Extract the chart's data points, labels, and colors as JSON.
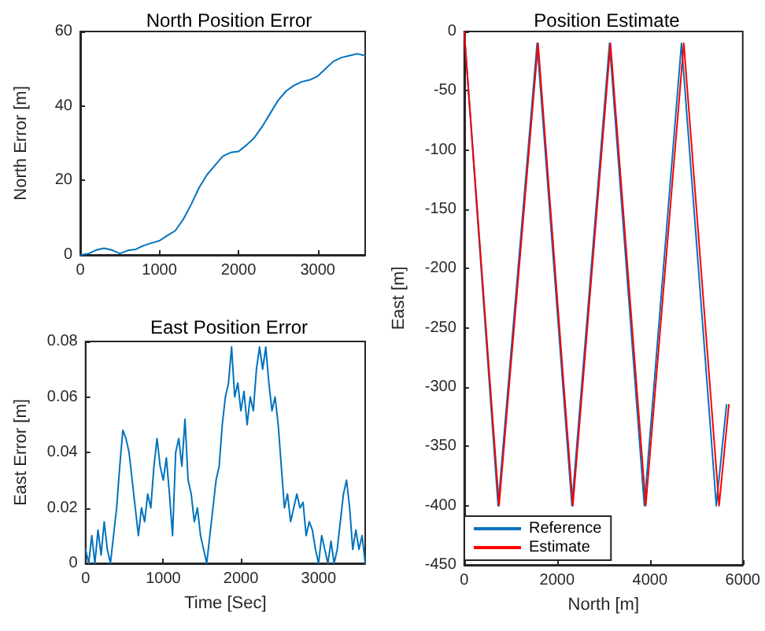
{
  "chart_data": [
    {
      "type": "line",
      "title": "North Position Error",
      "ylabel": "North Error [m]",
      "xlim": [
        0,
        3600
      ],
      "xticks": [
        0,
        1000,
        2000,
        3000
      ],
      "ylim": [
        0,
        60
      ],
      "yticks": [
        0,
        20,
        40,
        60
      ],
      "grid": false,
      "legend": false,
      "marker": "none",
      "x": [
        0,
        100,
        200,
        300,
        400,
        500,
        600,
        700,
        800,
        900,
        1000,
        1100,
        1200,
        1300,
        1400,
        1500,
        1600,
        1700,
        1800,
        1900,
        2000,
        2100,
        2200,
        2300,
        2400,
        2500,
        2600,
        2700,
        2800,
        2900,
        3000,
        3100,
        3200,
        3300,
        3400,
        3500,
        3600
      ],
      "series": [
        {
          "color": "#0072bd",
          "values": [
            0,
            0.3,
            1.3,
            1.8,
            1.3,
            0.4,
            1.2,
            1.5,
            2.5,
            3.2,
            3.8,
            5.2,
            6.5,
            9.5,
            13.5,
            18,
            21.5,
            24,
            26.5,
            27.5,
            27.8,
            29.5,
            31.5,
            34.5,
            38,
            41.5,
            44,
            45.5,
            46.5,
            47,
            48,
            50,
            52,
            53,
            53.5,
            54,
            53.5
          ]
        }
      ]
    },
    {
      "type": "line",
      "title": "East Position Error",
      "xlabel": "Time [Sec]",
      "ylabel": "East Error [m]",
      "xlim": [
        0,
        3600
      ],
      "xticks": [
        0,
        1000,
        2000,
        3000
      ],
      "ylim": [
        0,
        0.08
      ],
      "yticks": [
        0,
        0.02,
        0.04,
        0.06,
        0.08
      ],
      "grid": false,
      "legend": false,
      "marker": "none",
      "x": [
        0,
        40,
        80,
        120,
        160,
        200,
        240,
        280,
        320,
        360,
        400,
        440,
        480,
        520,
        560,
        600,
        640,
        680,
        720,
        760,
        800,
        840,
        880,
        920,
        960,
        1000,
        1040,
        1080,
        1120,
        1160,
        1200,
        1240,
        1280,
        1320,
        1360,
        1400,
        1440,
        1480,
        1520,
        1560,
        1600,
        1640,
        1680,
        1720,
        1760,
        1800,
        1840,
        1880,
        1920,
        1960,
        2000,
        2040,
        2080,
        2120,
        2160,
        2200,
        2240,
        2280,
        2320,
        2360,
        2400,
        2440,
        2480,
        2520,
        2560,
        2600,
        2640,
        2680,
        2720,
        2760,
        2800,
        2840,
        2880,
        2920,
        2960,
        3000,
        3040,
        3080,
        3120,
        3160,
        3200,
        3240,
        3280,
        3320,
        3360,
        3400,
        3440,
        3480,
        3520,
        3560,
        3600
      ],
      "series": [
        {
          "color": "#0072bd",
          "values": [
            0.005,
            0,
            0.01,
            0,
            0.012,
            0.003,
            0.015,
            0.005,
            0,
            0.01,
            0.02,
            0.035,
            0.048,
            0.045,
            0.04,
            0.03,
            0.02,
            0.01,
            0.02,
            0.015,
            0.025,
            0.02,
            0.035,
            0.045,
            0.035,
            0.03,
            0.038,
            0.025,
            0.01,
            0.04,
            0.045,
            0.035,
            0.052,
            0.03,
            0.025,
            0.015,
            0.02,
            0.01,
            0.005,
            0,
            0.01,
            0.02,
            0.03,
            0.035,
            0.05,
            0.06,
            0.065,
            0.078,
            0.06,
            0.065,
            0.055,
            0.062,
            0.05,
            0.06,
            0.055,
            0.07,
            0.078,
            0.07,
            0.078,
            0.065,
            0.055,
            0.06,
            0.05,
            0.035,
            0.02,
            0.025,
            0.015,
            0.02,
            0.025,
            0.02,
            0.022,
            0.01,
            0.015,
            0.012,
            0.005,
            0,
            0.01,
            0.005,
            0,
            0.008,
            0,
            0.005,
            0.015,
            0.025,
            0.03,
            0.02,
            0.005,
            0.012,
            0.005,
            0.01,
            0
          ]
        }
      ]
    },
    {
      "type": "line",
      "title": "Position Estimate",
      "xlabel": "North [m]",
      "ylabel": "East [m]",
      "xlim": [
        0,
        6000
      ],
      "xticks": [
        0,
        2000,
        4000,
        6000
      ],
      "ylim": [
        -450,
        0
      ],
      "yticks": [
        -450,
        -400,
        -350,
        -300,
        -250,
        -200,
        -150,
        -100,
        -50,
        0
      ],
      "grid": false,
      "legend": "bottom left",
      "marker": "none",
      "series": [
        {
          "name": "Reference",
          "color": "#0072bd",
          "x": [
            0,
            730,
            1570,
            2320,
            3130,
            3880,
            4680,
            5430,
            5650
          ],
          "values": [
            0,
            -400,
            -10,
            -400,
            -10,
            -400,
            -10,
            -400,
            -315
          ]
        },
        {
          "name": "Estimate",
          "color": "#ff0000",
          "x": [
            0,
            750,
            1590,
            2340,
            3150,
            3910,
            4730,
            5490,
            5700
          ],
          "values": [
            0,
            -400,
            -10,
            -400,
            -10,
            -400,
            -10,
            -400,
            -315
          ]
        }
      ]
    }
  ]
}
